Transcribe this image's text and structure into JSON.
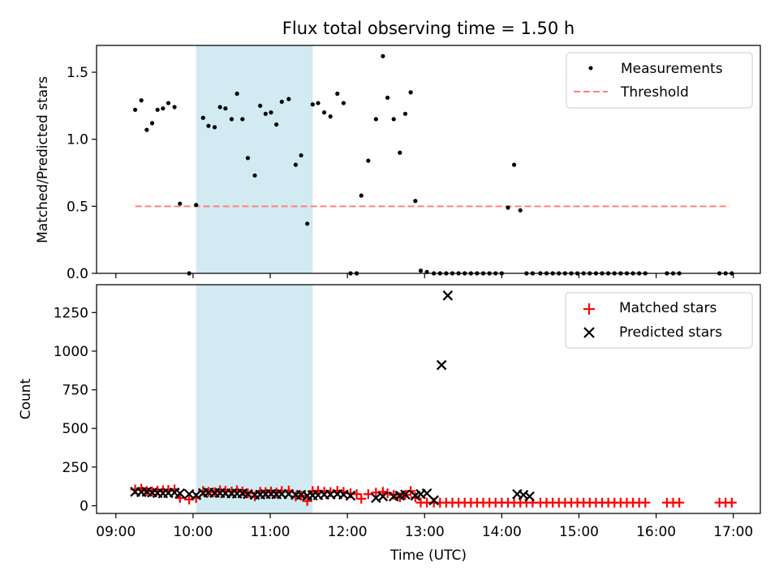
{
  "chart_data": {
    "title": "Flux total observing time = 1.50 h",
    "xlabel": "Time (UTC)",
    "x_unit": "hours UTC",
    "xlim": [
      8.75,
      17.35
    ],
    "xticks": [
      9,
      10,
      11,
      12,
      13,
      14,
      15,
      16,
      17
    ],
    "xtick_labels": [
      "09:00",
      "10:00",
      "11:00",
      "12:00",
      "13:00",
      "14:00",
      "15:00",
      "16:00",
      "17:00"
    ],
    "highlight_span": [
      10.04,
      11.55
    ],
    "highlight_color": "#add8e6",
    "panels": [
      {
        "type": "scatter",
        "ylabel": "Matched/Predicted stars",
        "ylim": [
          0,
          1.7
        ],
        "yticks": [
          0.0,
          0.5,
          1.0,
          1.5
        ],
        "ytick_labels": [
          "0.0",
          "0.5",
          "1.0",
          "1.5"
        ],
        "legend_position": "top-right",
        "legend": [
          "Measurements",
          "Threshold"
        ],
        "threshold": {
          "value": 0.5,
          "x_range": [
            9.25,
            16.95
          ],
          "color": "#ff8080",
          "style": "dashed"
        },
        "measurements": {
          "x": [
            9.25,
            9.33,
            9.4,
            9.47,
            9.54,
            9.61,
            9.68,
            9.76,
            9.83,
            9.95,
            10.04,
            10.13,
            10.2,
            10.28,
            10.35,
            10.42,
            10.5,
            10.57,
            10.64,
            10.71,
            10.8,
            10.87,
            10.94,
            11.01,
            11.08,
            11.15,
            11.24,
            11.33,
            11.4,
            11.48,
            11.55,
            11.62,
            11.7,
            11.78,
            11.87,
            11.95,
            12.04,
            12.12,
            12.18,
            12.27,
            12.37,
            12.46,
            12.52,
            12.6,
            12.68,
            12.75,
            12.82,
            12.88,
            12.95,
            13.03,
            13.12,
            13.2,
            13.28,
            13.36,
            13.44,
            13.52,
            13.6,
            13.68,
            13.76,
            13.84,
            13.92,
            14.0,
            14.08,
            14.16,
            14.24,
            14.32,
            14.4,
            14.5,
            14.58,
            14.66,
            14.74,
            14.82,
            14.9,
            14.98,
            15.06,
            15.14,
            15.22,
            15.3,
            15.38,
            15.46,
            15.54,
            15.62,
            15.7,
            15.78,
            15.86,
            16.14,
            16.22,
            16.3,
            16.82,
            16.9,
            16.98
          ],
          "y": [
            1.22,
            1.29,
            1.07,
            1.12,
            1.22,
            1.23,
            1.27,
            1.24,
            0.52,
            0.0,
            0.51,
            1.16,
            1.1,
            1.09,
            1.24,
            1.23,
            1.15,
            1.34,
            1.15,
            0.86,
            0.73,
            1.25,
            1.19,
            1.2,
            1.11,
            1.28,
            1.3,
            0.81,
            0.88,
            0.37,
            1.26,
            1.27,
            1.2,
            1.17,
            1.34,
            1.27,
            0.0,
            0.0,
            0.58,
            0.84,
            1.15,
            1.62,
            1.31,
            1.15,
            0.9,
            1.19,
            1.35,
            0.54,
            0.02,
            0.01,
            0.0,
            0.0,
            0.0,
            0.0,
            0.0,
            0.0,
            0.0,
            0.0,
            0.0,
            0.0,
            0.0,
            0.0,
            0.49,
            0.81,
            0.47,
            0.0,
            0.0,
            0.0,
            0.0,
            0.0,
            0.0,
            0.0,
            0.0,
            0.0,
            0.0,
            0.0,
            0.0,
            0.0,
            0.0,
            0.0,
            0.0,
            0.0,
            0.0,
            0.0,
            0.0,
            0.0,
            0.0,
            0.0,
            0.0,
            0.0,
            0.0
          ]
        }
      },
      {
        "type": "scatter",
        "ylabel": "Count",
        "ylim": [
          -50,
          1430
        ],
        "yticks": [
          0,
          250,
          500,
          750,
          1000,
          1250
        ],
        "ytick_labels": [
          "0",
          "250",
          "500",
          "750",
          "1000",
          "1250"
        ],
        "legend_position": "top-right",
        "legend": [
          "Matched stars",
          "Predicted stars"
        ],
        "matched": {
          "color": "#ff0000",
          "x": [
            9.25,
            9.33,
            9.4,
            9.47,
            9.54,
            9.61,
            9.68,
            9.76,
            9.83,
            9.95,
            10.04,
            10.13,
            10.2,
            10.28,
            10.35,
            10.42,
            10.5,
            10.57,
            10.64,
            10.71,
            10.8,
            10.87,
            10.94,
            11.01,
            11.08,
            11.15,
            11.24,
            11.33,
            11.4,
            11.48,
            11.55,
            11.62,
            11.7,
            11.78,
            11.87,
            11.95,
            12.04,
            12.12,
            12.18,
            12.27,
            12.37,
            12.46,
            12.52,
            12.6,
            12.68,
            12.75,
            12.82,
            12.88,
            12.95,
            13.03,
            13.12,
            13.2,
            13.28,
            13.36,
            13.44,
            13.52,
            13.6,
            13.68,
            13.76,
            13.84,
            13.92,
            14.0,
            14.08,
            14.16,
            14.24,
            14.32,
            14.4,
            14.5,
            14.58,
            14.66,
            14.74,
            14.82,
            14.9,
            14.98,
            15.06,
            15.14,
            15.22,
            15.3,
            15.38,
            15.46,
            15.54,
            15.62,
            15.7,
            15.78,
            15.86,
            16.14,
            16.22,
            16.3,
            16.82,
            16.9,
            16.98
          ],
          "y": [
            105,
            110,
            95,
            92,
            98,
            100,
            102,
            105,
            50,
            40,
            50,
            95,
            90,
            88,
            100,
            97,
            92,
            100,
            92,
            80,
            60,
            90,
            88,
            92,
            85,
            95,
            98,
            60,
            65,
            30,
            95,
            97,
            90,
            88,
            97,
            90,
            80,
            75,
            45,
            75,
            85,
            90,
            80,
            70,
            55,
            70,
            95,
            55,
            20,
            20,
            20,
            20,
            20,
            20,
            20,
            20,
            20,
            20,
            20,
            20,
            20,
            20,
            20,
            20,
            20,
            20,
            20,
            20,
            20,
            20,
            20,
            20,
            20,
            20,
            20,
            20,
            20,
            20,
            20,
            20,
            20,
            20,
            20,
            20,
            20,
            20,
            20,
            20,
            20,
            20,
            20
          ]
        },
        "predicted": {
          "color": "#000000",
          "x": [
            9.25,
            9.33,
            9.4,
            9.47,
            9.54,
            9.61,
            9.68,
            9.76,
            9.83,
            9.95,
            10.04,
            10.13,
            10.2,
            10.28,
            10.35,
            10.42,
            10.5,
            10.57,
            10.64,
            10.71,
            10.8,
            10.87,
            10.94,
            11.01,
            11.08,
            11.15,
            11.24,
            11.33,
            11.4,
            11.48,
            11.55,
            11.62,
            11.7,
            11.78,
            11.87,
            11.95,
            12.04,
            12.37,
            12.46,
            12.6,
            12.68,
            12.75,
            12.88,
            12.95,
            13.03,
            13.12,
            13.22,
            13.3,
            14.2,
            14.28,
            14.36
          ],
          "y": [
            90,
            88,
            90,
            85,
            82,
            80,
            82,
            85,
            80,
            75,
            68,
            82,
            85,
            83,
            82,
            80,
            80,
            78,
            80,
            75,
            70,
            72,
            75,
            76,
            74,
            75,
            75,
            70,
            70,
            65,
            66,
            68,
            72,
            73,
            75,
            72,
            65,
            50,
            60,
            60,
            65,
            72,
            65,
            75,
            80,
            35,
            910,
            1360,
            75,
            70,
            60
          ]
        }
      }
    ]
  }
}
